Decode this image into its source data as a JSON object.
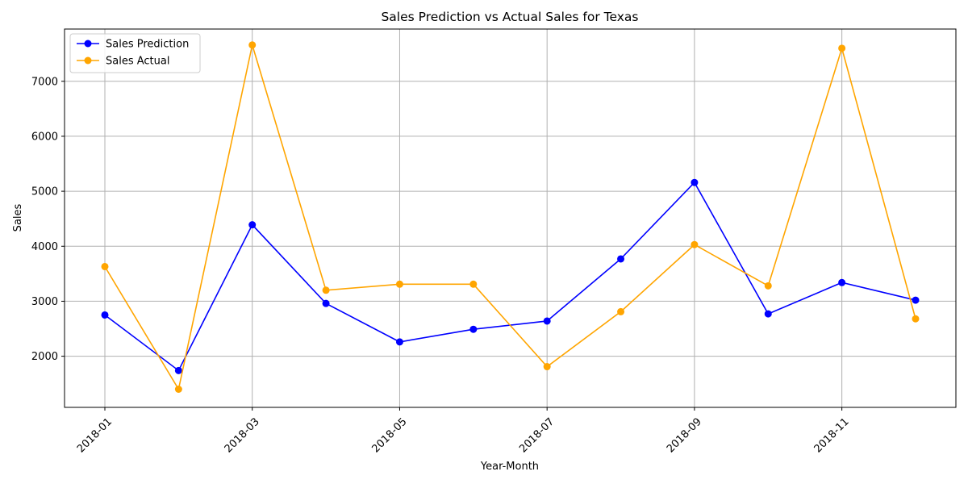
{
  "chart_data": {
    "type": "line",
    "title": "Sales Prediction vs Actual Sales for Texas",
    "xlabel": "Year-Month",
    "ylabel": "Sales",
    "x": [
      "2018-01",
      "2018-02",
      "2018-03",
      "2018-04",
      "2018-05",
      "2018-06",
      "2018-07",
      "2018-08",
      "2018-09",
      "2018-10",
      "2018-11",
      "2018-12"
    ],
    "x_tick_labels": [
      "2018-01",
      "2018-03",
      "2018-05",
      "2018-07",
      "2018-09",
      "2018-11"
    ],
    "y_ticks": [
      2000,
      3000,
      4000,
      5000,
      6000,
      7000
    ],
    "ylim": [
      1070,
      7950
    ],
    "grid": true,
    "legend_position": "top-left",
    "series": [
      {
        "name": "Sales Prediction",
        "color": "#0000ff",
        "marker": "circle",
        "values": [
          2750,
          1740,
          4390,
          2960,
          2260,
          2490,
          2640,
          3770,
          5160,
          2770,
          3340,
          3020
        ]
      },
      {
        "name": "Sales Actual",
        "color": "#ffa500",
        "marker": "circle",
        "values": [
          3630,
          1400,
          7660,
          3200,
          3310,
          3310,
          1810,
          2810,
          4030,
          3280,
          7600,
          2680
        ]
      }
    ]
  }
}
